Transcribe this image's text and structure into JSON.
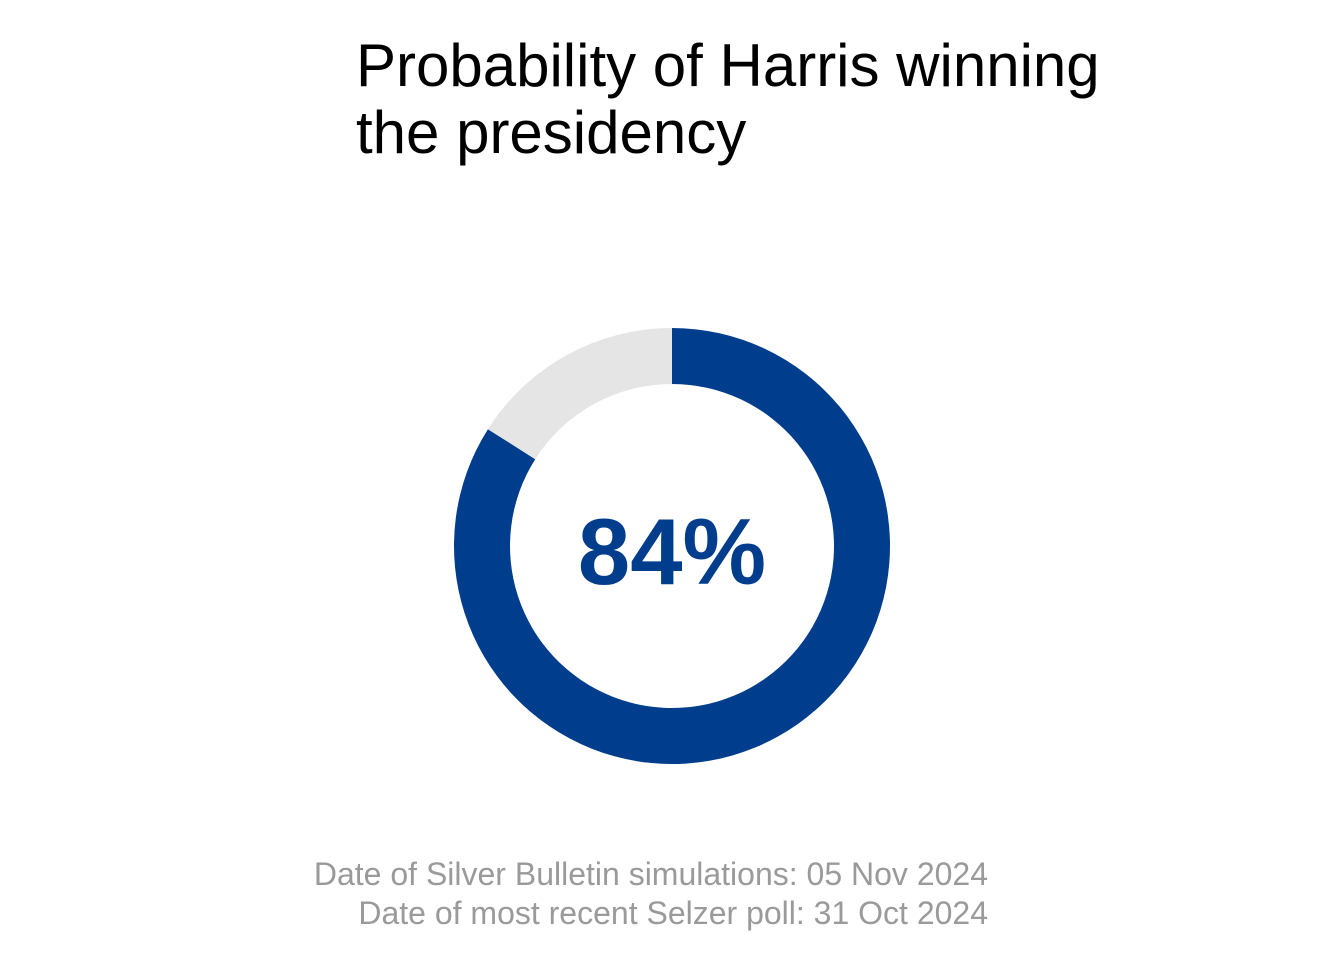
{
  "chart_data": {
    "type": "pie",
    "title": "Probability of Harris winning the presidency",
    "title_lines": [
      "Probability of Harris winning",
      "the presidency"
    ],
    "values": [
      84,
      16
    ],
    "center_label": "84%",
    "style": "donut",
    "colors": [
      "#003d8c",
      "#e5e5e5"
    ]
  },
  "notes": {
    "simulation_date": "Date of Silver Bulletin simulations: 05 Nov 2024",
    "poll_date": "Date of most recent Selzer poll: 31 Oct 2024"
  }
}
